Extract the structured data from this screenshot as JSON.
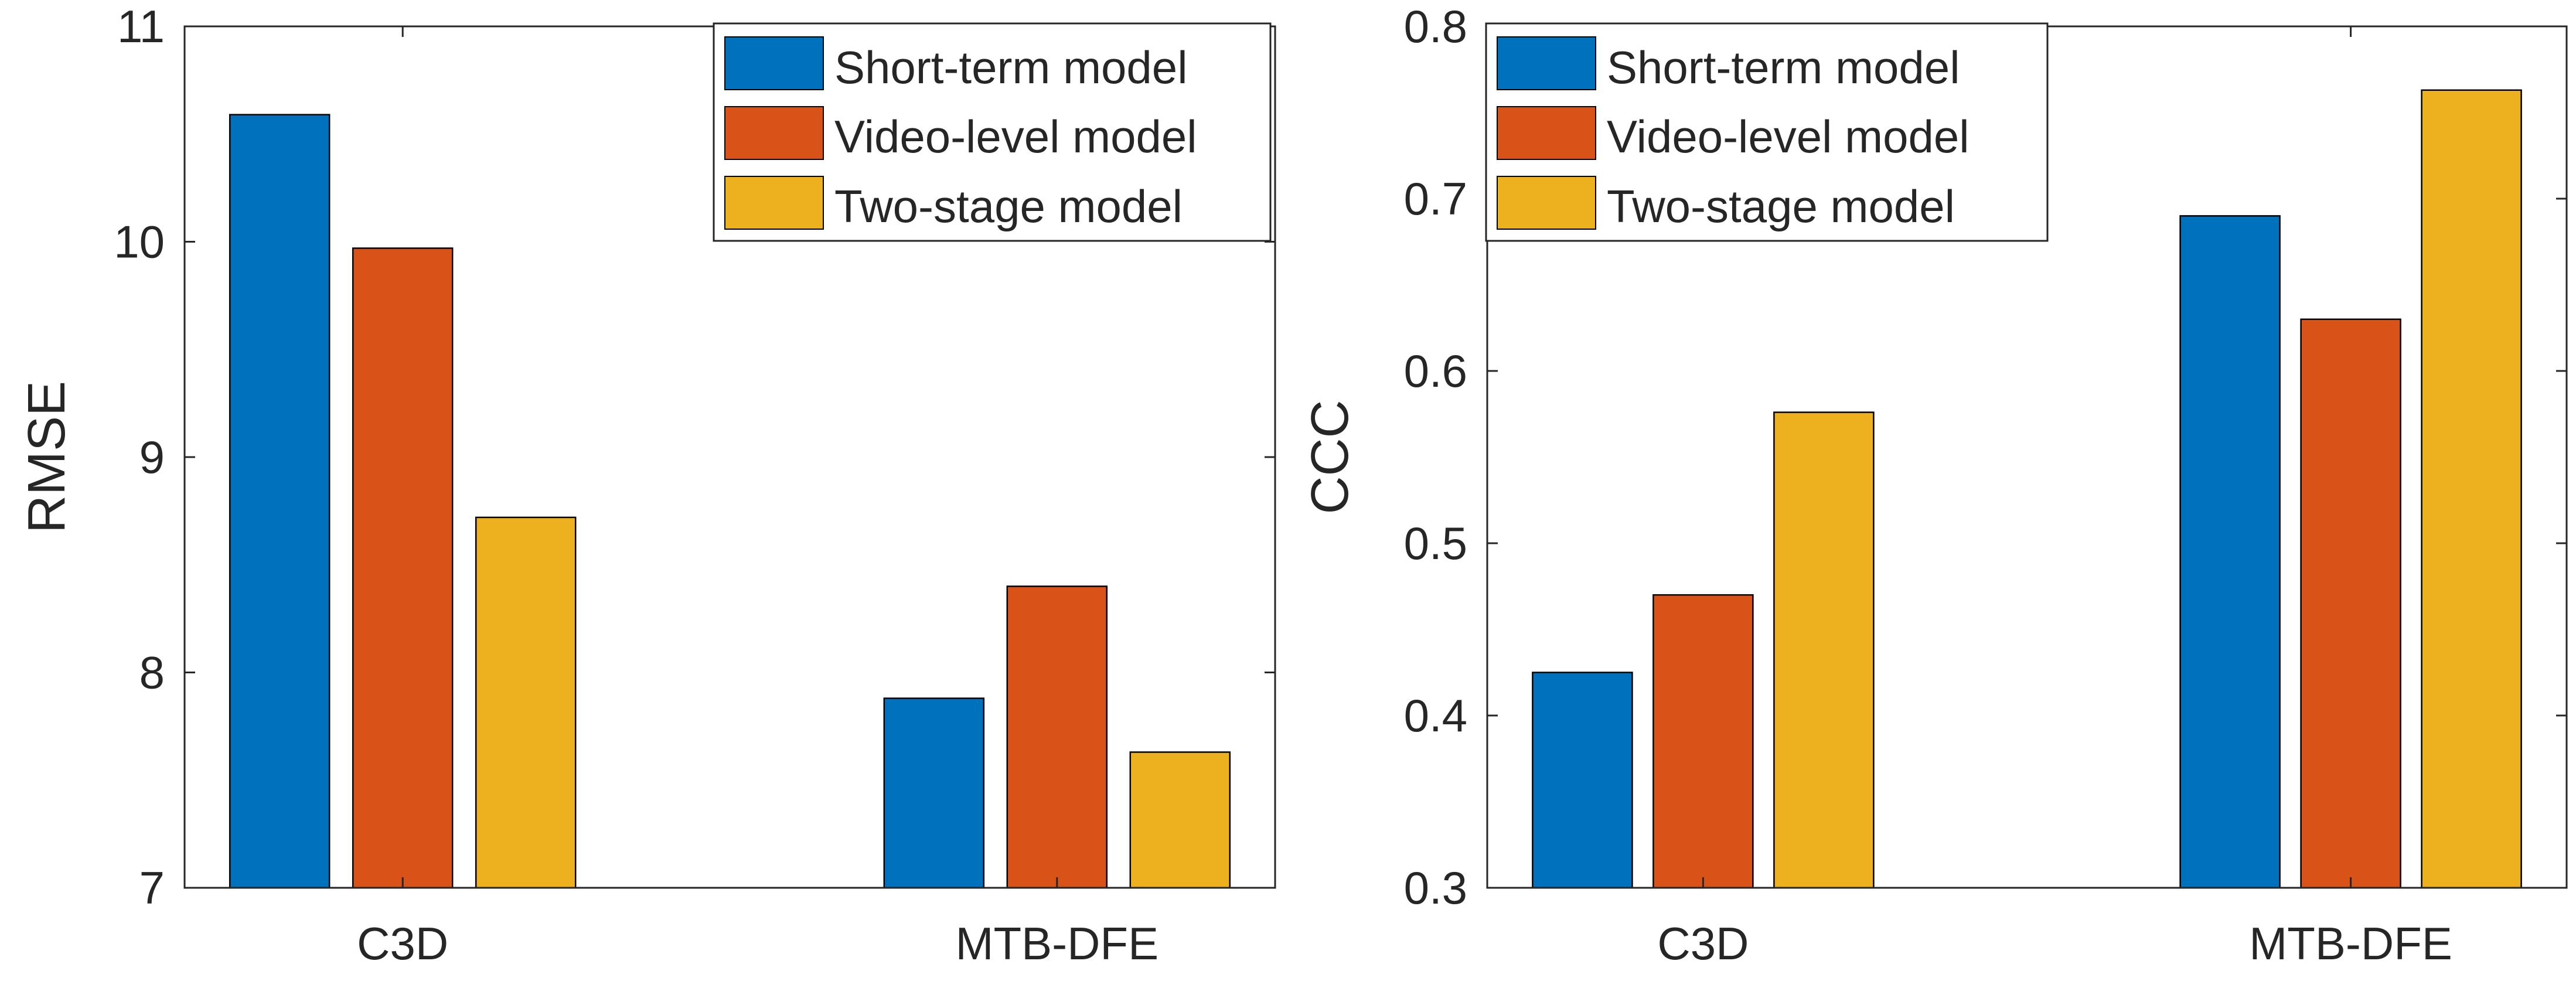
{
  "chart_data": [
    {
      "type": "bar",
      "title": "",
      "xlabel": "",
      "ylabel": "RMSE",
      "ylim": [
        7,
        11
      ],
      "yticks": [
        "7",
        "8",
        "9",
        "10",
        "11"
      ],
      "categories": [
        "C3D",
        "MTB-DFE"
      ],
      "series": [
        {
          "name": "Short-term model",
          "values": [
            10.59,
            7.88
          ],
          "color": "#0072BD"
        },
        {
          "name": "Video-level model",
          "values": [
            9.97,
            8.4
          ],
          "color": "#D95319"
        },
        {
          "name": "Two-stage model",
          "values": [
            8.72,
            7.63
          ],
          "color": "#EDB120"
        }
      ],
      "legend": {
        "location": "top-right",
        "entries": [
          "Short-term model",
          "Video-level model",
          "Two-stage model"
        ]
      },
      "grid": false
    },
    {
      "type": "bar",
      "title": "",
      "xlabel": "",
      "ylabel": "CCC",
      "ylim": [
        0.3,
        0.8
      ],
      "yticks": [
        "0.3",
        "0.4",
        "0.5",
        "0.6",
        "0.7",
        "0.8"
      ],
      "categories": [
        "C3D",
        "MTB-DFE"
      ],
      "series": [
        {
          "name": "Short-term model",
          "values": [
            0.425,
            0.69
          ],
          "color": "#0072BD"
        },
        {
          "name": "Video-level model",
          "values": [
            0.47,
            0.63
          ],
          "color": "#D95319"
        },
        {
          "name": "Two-stage model",
          "values": [
            0.576,
            0.763
          ],
          "color": "#EDB120"
        }
      ],
      "legend": {
        "location": "top-left",
        "entries": [
          "Short-term model",
          "Video-level model",
          "Two-stage model"
        ]
      },
      "grid": false
    }
  ]
}
